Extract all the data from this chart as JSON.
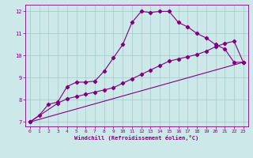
{
  "xlabel": "Windchill (Refroidissement éolien,°C)",
  "bg_color": "#cce8e8",
  "grid_color": "#aacece",
  "line_color": "#800080",
  "xlim": [
    -0.5,
    23.5
  ],
  "ylim": [
    6.8,
    12.3
  ],
  "xticks": [
    0,
    1,
    2,
    3,
    4,
    5,
    6,
    7,
    8,
    9,
    10,
    11,
    12,
    13,
    14,
    15,
    16,
    17,
    18,
    19,
    20,
    21,
    22,
    23
  ],
  "yticks": [
    7,
    8,
    9,
    10,
    11,
    12
  ],
  "line1_x": [
    0,
    1,
    2,
    3,
    4,
    5,
    6,
    7,
    8,
    9,
    10,
    11,
    12,
    13,
    14,
    15,
    16,
    17,
    18,
    19,
    20,
    21,
    22,
    23
  ],
  "line1_y": [
    7.0,
    7.3,
    7.8,
    7.9,
    8.6,
    8.8,
    8.8,
    8.85,
    9.3,
    9.9,
    10.5,
    11.5,
    12.0,
    11.95,
    12.0,
    12.0,
    11.5,
    11.3,
    11.0,
    10.8,
    10.5,
    10.3,
    9.7,
    9.7
  ],
  "line2_x": [
    0,
    3,
    4,
    5,
    6,
    7,
    8,
    9,
    10,
    11,
    12,
    13,
    14,
    15,
    16,
    17,
    18,
    19,
    20,
    21,
    22,
    23
  ],
  "line2_y": [
    7.0,
    7.85,
    8.05,
    8.15,
    8.25,
    8.35,
    8.45,
    8.55,
    8.75,
    8.95,
    9.15,
    9.35,
    9.55,
    9.75,
    9.85,
    9.95,
    10.05,
    10.2,
    10.4,
    10.55,
    10.65,
    9.7
  ],
  "line3_x": [
    0,
    23
  ],
  "line3_y": [
    7.0,
    9.7
  ]
}
